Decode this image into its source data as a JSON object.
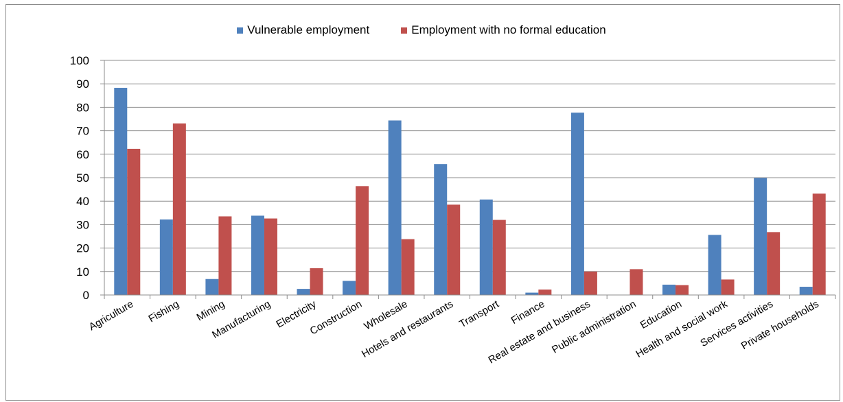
{
  "chart_data": {
    "type": "bar",
    "categories": [
      "Agriculture",
      "Fishing",
      "Mining",
      "Manufacturing",
      "Electricity",
      "Construction",
      "Wholesale",
      "Hotels and restaurants",
      "Transport",
      "Finance",
      "Real estate and business",
      "Public administration",
      "Education",
      "Health and social work",
      "Services activities",
      "Private households"
    ],
    "series": [
      {
        "name": "Vulnerable employment",
        "color": "#4f81bd",
        "values": [
          88.3,
          32.2,
          6.8,
          33.8,
          2.6,
          6.0,
          74.4,
          55.8,
          40.7,
          1.0,
          77.7,
          0,
          4.4,
          25.6,
          49.9,
          3.5
        ]
      },
      {
        "name": "Employment with no formal education",
        "color": "#c0504d",
        "values": [
          62.3,
          73.1,
          33.5,
          32.6,
          11.4,
          46.4,
          23.8,
          38.5,
          32.0,
          2.3,
          10.0,
          11.0,
          4.2,
          6.6,
          26.8,
          43.2
        ]
      }
    ],
    "ylim": [
      0,
      100
    ],
    "yticks": [
      "0",
      "10",
      "20",
      "30",
      "40",
      "50",
      "60",
      "70",
      "80",
      "90",
      "100"
    ],
    "grid": true,
    "legend_position": "top"
  }
}
